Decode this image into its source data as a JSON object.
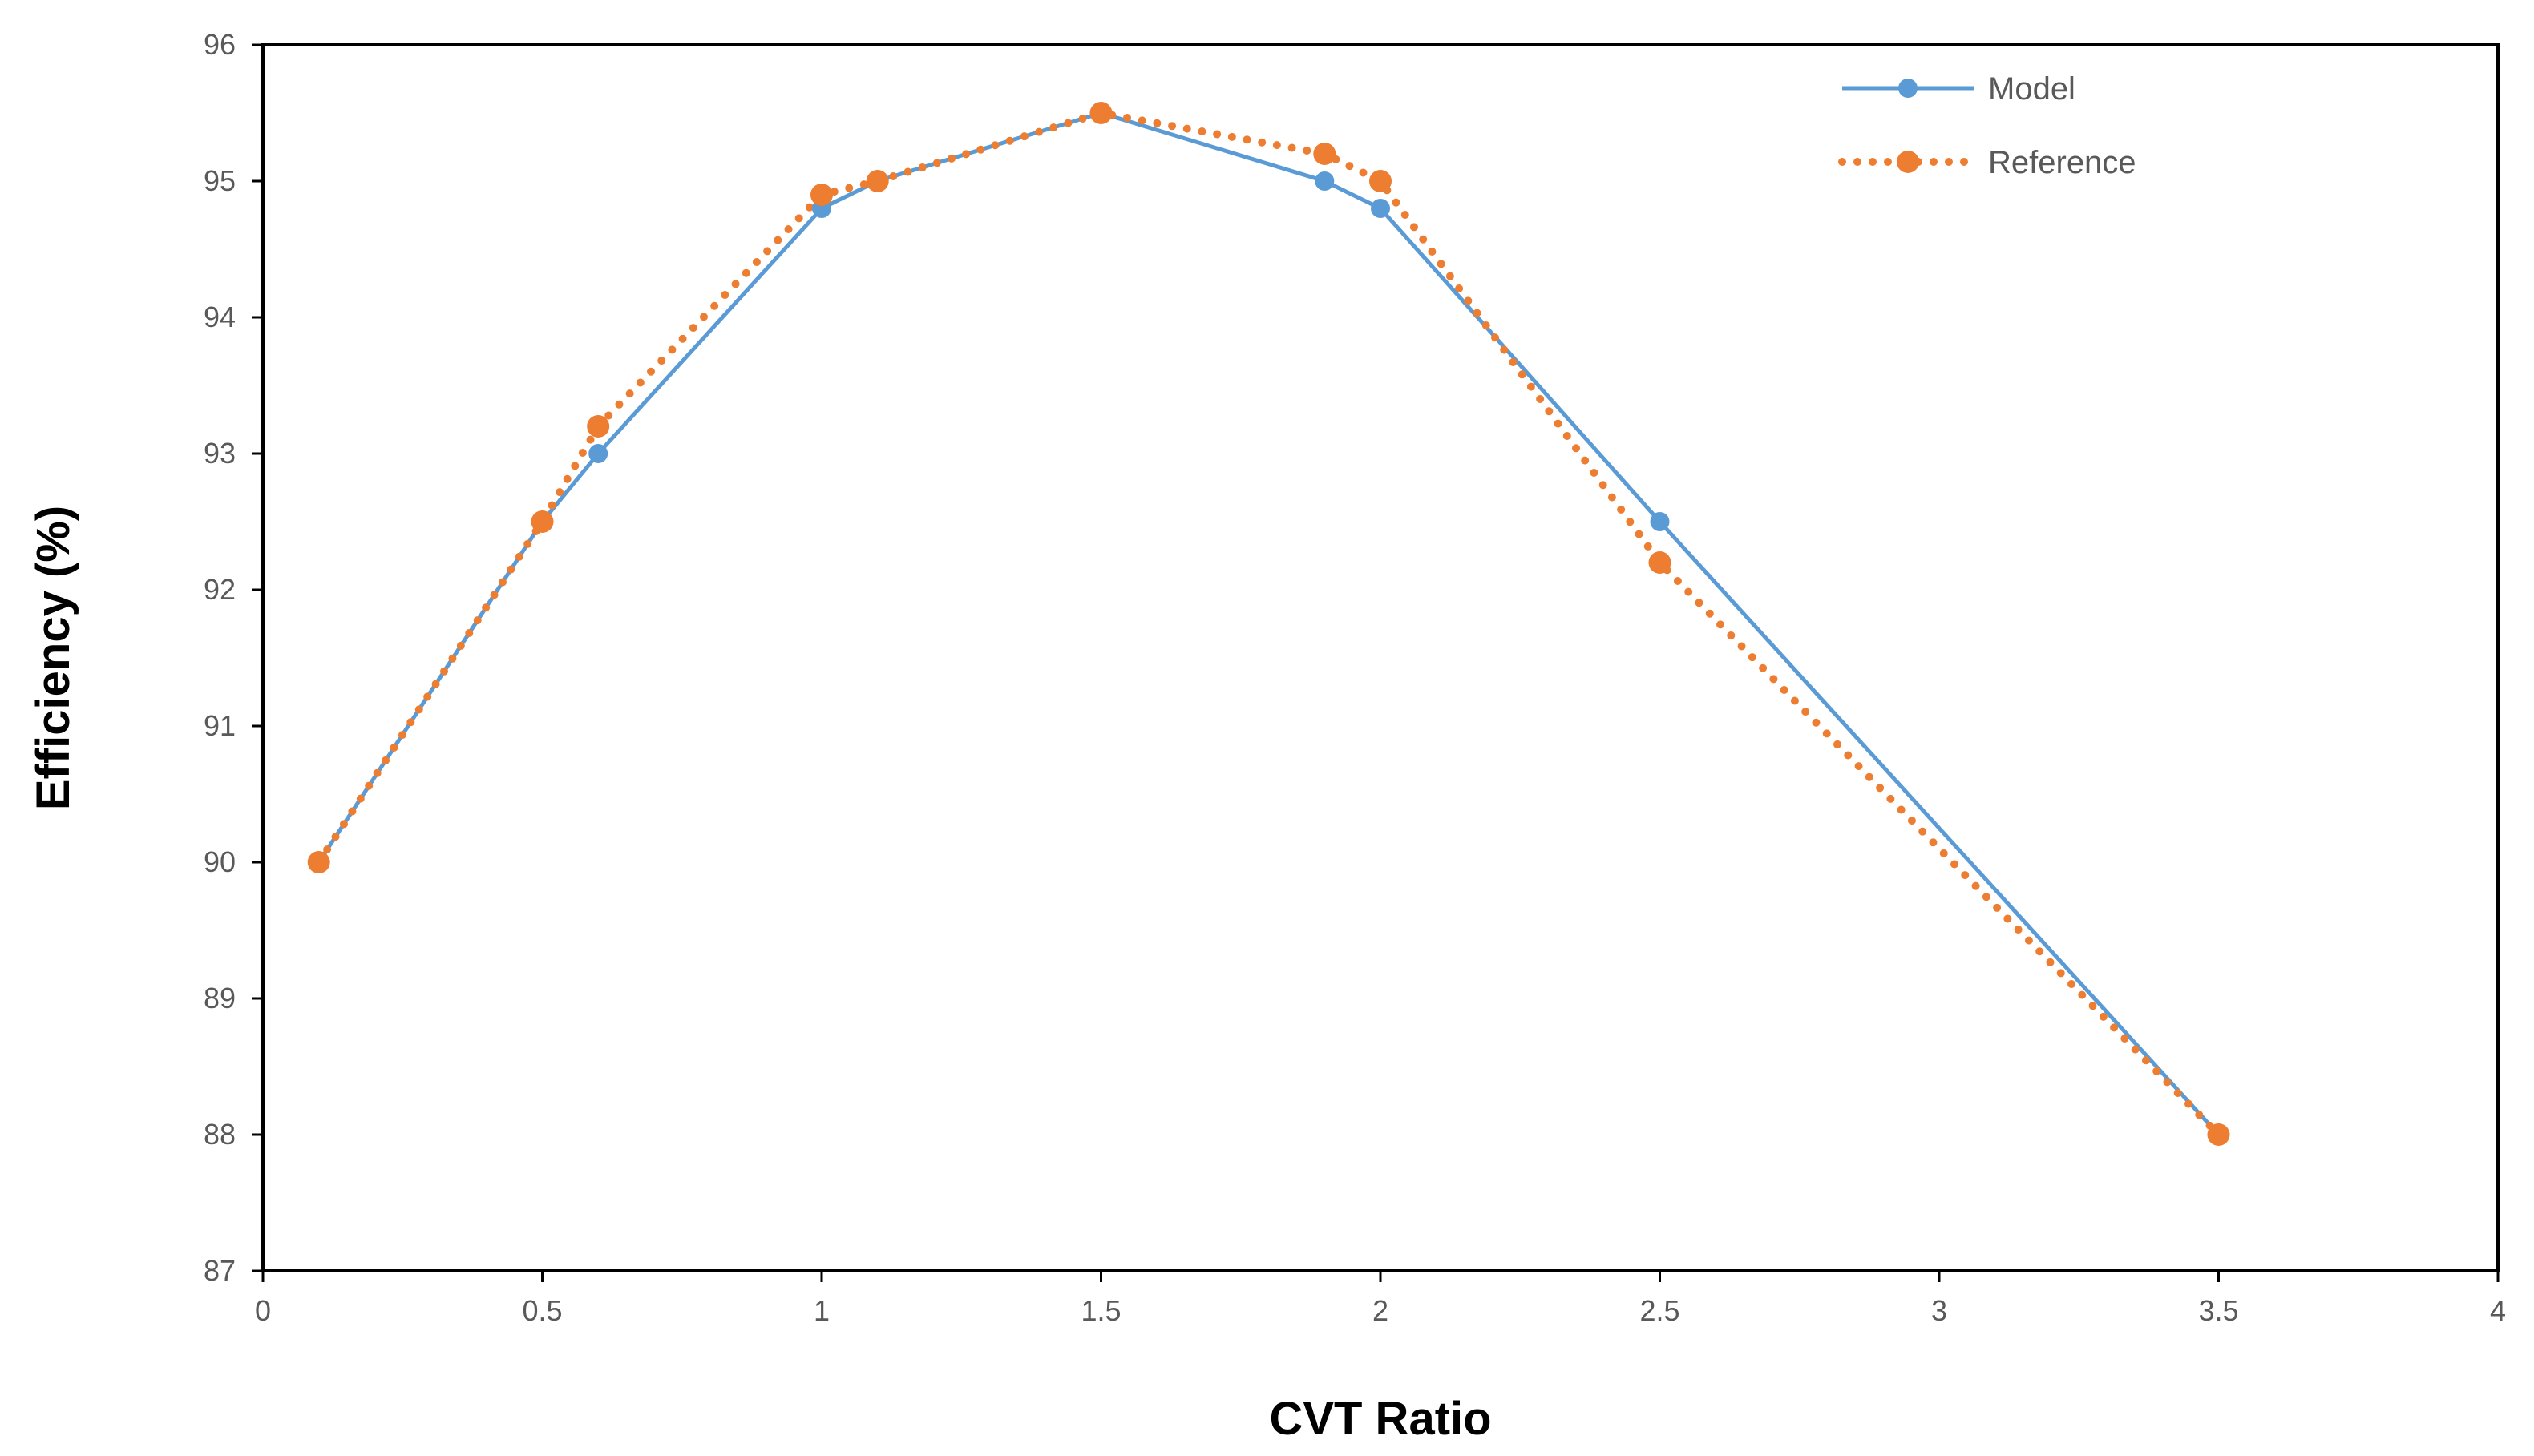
{
  "chart_data": {
    "type": "line",
    "title": "",
    "xlabel": "CVT Ratio",
    "ylabel": "Efficiency (%)",
    "xlim": [
      0,
      4
    ],
    "ylim": [
      87,
      96
    ],
    "x_ticks": [
      0,
      0.5,
      1,
      1.5,
      2,
      2.5,
      3,
      3.5,
      4
    ],
    "x_tick_labels": [
      "0",
      "0.5",
      "1",
      "1.5",
      "2",
      "2.5",
      "3",
      "3.5",
      "4"
    ],
    "y_ticks": [
      87,
      88,
      89,
      90,
      91,
      92,
      93,
      94,
      95,
      96
    ],
    "y_tick_labels": [
      "87",
      "88",
      "89",
      "90",
      "91",
      "92",
      "93",
      "94",
      "95",
      "96"
    ],
    "grid": false,
    "legend_position": "top-right",
    "series": [
      {
        "name": "Model",
        "style": "solid",
        "color": "#5B9BD5",
        "x": [
          0.1,
          0.5,
          0.6,
          1.0,
          1.1,
          1.5,
          1.9,
          2.0,
          2.5,
          3.5
        ],
        "y": [
          90.0,
          92.5,
          93.0,
          94.8,
          95.0,
          95.5,
          95.0,
          94.8,
          92.5,
          88.0
        ]
      },
      {
        "name": "Reference",
        "style": "dotted",
        "color": "#ED7D31",
        "x": [
          0.1,
          0.5,
          0.6,
          1.0,
          1.1,
          1.5,
          1.9,
          2.0,
          2.5,
          3.5
        ],
        "y": [
          90.0,
          92.5,
          93.2,
          94.9,
          95.0,
          95.5,
          95.2,
          95.0,
          92.2,
          88.0
        ]
      }
    ]
  }
}
